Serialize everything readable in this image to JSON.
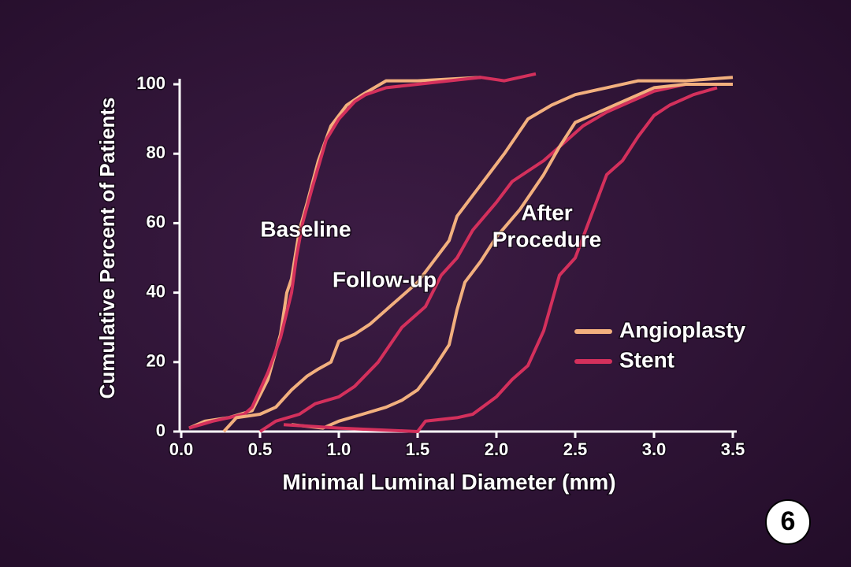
{
  "chart_data": {
    "type": "line",
    "xlabel": "Minimal Luminal Diameter (mm)",
    "ylabel": "Cumulative Percent of Patients",
    "xlim": [
      0,
      3.5
    ],
    "ylim": [
      0,
      100
    ],
    "xticks": [
      {
        "value": 0,
        "label": "0.0"
      },
      {
        "value": 0.5,
        "label": "0.5"
      },
      {
        "value": 1,
        "label": "1.0"
      },
      {
        "value": 1.5,
        "label": "1.5"
      },
      {
        "value": 2,
        "label": "2.0"
      },
      {
        "value": 2.5,
        "label": "2.5"
      },
      {
        "value": 3,
        "label": "3.0"
      },
      {
        "value": 3.5,
        "label": "3.5"
      }
    ],
    "yticks": [
      0,
      20,
      40,
      60,
      80,
      100
    ],
    "legend": [
      {
        "name": "Angioplasty",
        "color": "#f2b07e"
      },
      {
        "name": "Stent",
        "color": "#d4305c"
      }
    ],
    "groups": [
      {
        "label": [
          "Baseline"
        ],
        "lines": [
          {
            "x": [
              0.05,
              0.15,
              0.3,
              0.45,
              0.55,
              0.63,
              0.67,
              0.7,
              0.75,
              0.8,
              0.87,
              0.95,
              1.05,
              1.15,
              1.3,
              1.5,
              1.9
            ],
            "values": [
              1,
              3,
              4,
              6,
              15,
              28,
              40,
              44,
              58,
              66,
              78,
              88,
              94,
              97,
              101,
              101,
              102
            ]
          },
          {
            "x": [
              0.05,
              0.2,
              0.4,
              0.45,
              0.55,
              0.63,
              0.7,
              0.73,
              0.77,
              0.83,
              0.92,
              1.0,
              1.1,
              1.17,
              1.3,
              1.5,
              1.9,
              2.05,
              2.15,
              2.25
            ],
            "values": [
              1,
              3,
              5,
              7,
              17,
              27,
              40,
              50,
              60,
              70,
              84,
              90,
              95,
              97,
              99,
              100,
              102,
              101,
              102,
              103
            ]
          }
        ]
      },
      {
        "label": [
          "Follow-up"
        ],
        "lines": [
          {
            "x": [
              0.27,
              0.35,
              0.5,
              0.6,
              0.7,
              0.8,
              0.87,
              0.95,
              1.0,
              1.1,
              1.2,
              1.35,
              1.5,
              1.6,
              1.7,
              1.75,
              1.85,
              1.95,
              2.05,
              2.2,
              2.35,
              2.5,
              2.7,
              2.9,
              3.2,
              3.5
            ],
            "values": [
              0,
              4,
              5,
              7,
              12,
              16,
              18,
              20,
              26,
              28,
              31,
              37,
              43,
              49,
              55,
              62,
              68,
              74,
              80,
              90,
              94,
              97,
              99,
              101,
              101,
              102
            ]
          },
          {
            "x": [
              0.5,
              0.6,
              0.75,
              0.85,
              1.0,
              1.1,
              1.25,
              1.4,
              1.55,
              1.65,
              1.75,
              1.85,
              2.0,
              2.1,
              2.3,
              2.45,
              2.55,
              2.7,
              2.85,
              3.0,
              3.2,
              3.5
            ],
            "values": [
              0,
              3,
              5,
              8,
              10,
              13,
              20,
              30,
              36,
              45,
              50,
              58,
              66,
              72,
              78,
              84,
              88,
              92,
              95,
              98,
              100,
              100
            ]
          }
        ]
      },
      {
        "label": [
          "After",
          "Procedure"
        ],
        "lines": [
          {
            "x": [
              0.7,
              0.9,
              1.0,
              1.15,
              1.3,
              1.4,
              1.5,
              1.55,
              1.6,
              1.7,
              1.75,
              1.8,
              1.9,
              2.0,
              2.15,
              2.3,
              2.4,
              2.5,
              2.65,
              2.8,
              3.0,
              3.2,
              3.5
            ],
            "values": [
              2,
              1,
              3,
              5,
              7,
              9,
              12,
              15,
              18,
              25,
              35,
              43,
              49,
              56,
              64,
              74,
              82,
              89,
              92,
              95,
              99,
              100,
              100
            ]
          },
          {
            "x": [
              0.65,
              1.0,
              1.5,
              1.55,
              1.75,
              1.85,
              2.0,
              2.1,
              2.2,
              2.3,
              2.4,
              2.5,
              2.6,
              2.7,
              2.8,
              2.9,
              3.0,
              3.1,
              3.25,
              3.4
            ],
            "values": [
              2,
              1,
              0,
              3,
              4,
              5,
              10,
              15,
              19,
              29,
              45,
              50,
              62,
              74,
              78,
              85,
              91,
              94,
              97,
              99
            ]
          }
        ]
      }
    ],
    "badge": "6"
  }
}
